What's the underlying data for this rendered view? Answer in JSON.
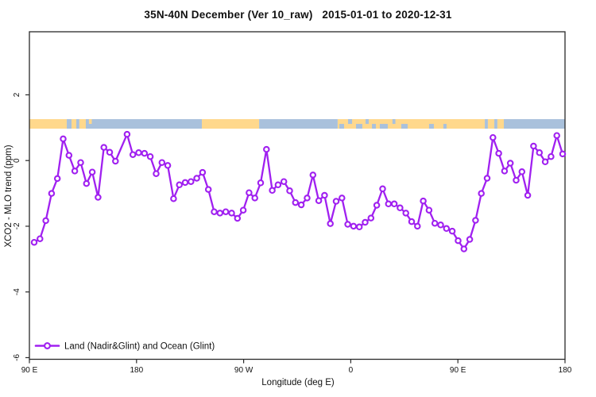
{
  "chart_data": {
    "type": "line",
    "title": "35N-40N December (Ver 10_raw)   2015-01-01 to 2020-12-31",
    "xlabel": "Longitude (deg E)",
    "ylabel": "XCO2 - MLO trend (ppm)",
    "legend_position": "bottom-left-inside",
    "grid": false,
    "xlim_deg_along_axis": [
      0,
      450
    ],
    "ylim": [
      -6.05,
      3.92
    ],
    "x_axis_note": "axis spans 450 degrees of longitude starting at 90E heading east: 90E, 180, 90W, 0, 90E, 180",
    "x_ticks": [
      {
        "label": "90 E",
        "deg": 0
      },
      {
        "label": "180",
        "deg": 90
      },
      {
        "label": "90 W",
        "deg": 180
      },
      {
        "label": "0",
        "deg": 270
      },
      {
        "label": "90 E",
        "deg": 360
      },
      {
        "label": "180",
        "deg": 450
      }
    ],
    "y_ticks": [
      {
        "label": "2",
        "value": 2
      },
      {
        "label": "0",
        "value": 0
      },
      {
        "label": "-2",
        "value": -2
      },
      {
        "label": "-4",
        "value": -4
      },
      {
        "label": "-6",
        "value": -6
      }
    ],
    "series": [
      {
        "name": "Land (Nadir&Glint) and Ocean (Glint)",
        "color": "#A020F0",
        "marker": "open-circle",
        "x_start_deg": 4,
        "x_step_deg": 4.879,
        "values": [
          -2.49,
          -2.38,
          -1.83,
          -1.0,
          -0.55,
          0.66,
          0.16,
          -0.32,
          -0.06,
          -0.7,
          -0.35,
          -1.12,
          0.4,
          0.25,
          -0.02,
          null,
          0.8,
          0.18,
          0.24,
          0.22,
          0.12,
          -0.4,
          -0.06,
          -0.15,
          -1.16,
          -0.74,
          -0.67,
          -0.64,
          -0.54,
          -0.36,
          -0.88,
          -1.56,
          -1.6,
          -1.56,
          -1.6,
          -1.76,
          -1.51,
          -0.98,
          -1.14,
          -0.68,
          0.34,
          -0.91,
          -0.74,
          -0.64,
          -0.92,
          -1.28,
          -1.35,
          -1.14,
          -0.44,
          -1.22,
          -1.06,
          -1.92,
          -1.24,
          -1.14,
          -1.94,
          -2.0,
          -2.02,
          -1.88,
          -1.75,
          -1.36,
          -0.86,
          -1.32,
          -1.32,
          -1.44,
          -1.6,
          -1.86,
          -2.0,
          -1.23,
          -1.51,
          -1.91,
          -1.96,
          -2.07,
          -2.15,
          -2.44,
          -2.69,
          -2.4,
          -1.82,
          -1.0,
          -0.54,
          0.7,
          0.22,
          -0.32,
          -0.08,
          -0.6,
          -0.34,
          -1.06,
          0.44,
          0.24,
          -0.04,
          0.12,
          0.76,
          0.2
        ]
      }
    ],
    "map_strip": {
      "description": "land/ocean map band drawn across the plot near y=1",
      "value_range": [
        0.97,
        1.26
      ],
      "colors": {
        "land": "#FFD88C",
        "ocean": "#A9C1DC"
      },
      "segments": [
        {
          "d0": 0,
          "d1": 31.4,
          "type": "land"
        },
        {
          "d0": 31.4,
          "d1": 35.4,
          "type": "ocean"
        },
        {
          "d0": 35.4,
          "d1": 39.4,
          "type": "land"
        },
        {
          "d0": 39.4,
          "d1": 42,
          "type": "ocean"
        },
        {
          "d0": 42,
          "d1": 47.4,
          "type": "land"
        },
        {
          "d0": 47.4,
          "d1": 144.9,
          "type": "ocean"
        },
        {
          "d0": 144.9,
          "d1": 193,
          "type": "land"
        },
        {
          "d0": 193,
          "d1": 259,
          "type": "ocean"
        },
        {
          "d0": 259,
          "d1": 382.6,
          "type": "land"
        },
        {
          "d0": 382.6,
          "d1": 385.2,
          "type": "ocean"
        },
        {
          "d0": 385.2,
          "d1": 390.6,
          "type": "land"
        },
        {
          "d0": 390.6,
          "d1": 393.2,
          "type": "ocean"
        },
        {
          "d0": 393.2,
          "d1": 398.6,
          "type": "land"
        },
        {
          "d0": 398.6,
          "d1": 450,
          "type": "ocean"
        }
      ],
      "patches": [
        {
          "d0": 50,
          "d1": 52.4,
          "type": "land",
          "half": "top"
        },
        {
          "d0": 260.4,
          "d1": 264.4,
          "type": "ocean",
          "half": "bottom"
        },
        {
          "d0": 267.7,
          "d1": 271.1,
          "type": "ocean",
          "half": "top"
        },
        {
          "d0": 274.4,
          "d1": 279.7,
          "type": "ocean",
          "half": "bottom"
        },
        {
          "d0": 282.4,
          "d1": 285.1,
          "type": "ocean",
          "half": "top"
        },
        {
          "d0": 287.8,
          "d1": 291.1,
          "type": "ocean",
          "half": "bottom"
        },
        {
          "d0": 294.4,
          "d1": 301.1,
          "type": "ocean",
          "half": "bottom"
        },
        {
          "d0": 305,
          "d1": 307.5,
          "type": "ocean",
          "half": "top"
        },
        {
          "d0": 312.4,
          "d1": 317.8,
          "type": "ocean",
          "half": "bottom"
        },
        {
          "d0": 335.8,
          "d1": 339.8,
          "type": "ocean",
          "half": "bottom"
        },
        {
          "d0": 347.8,
          "d1": 350.5,
          "type": "ocean",
          "half": "bottom"
        }
      ]
    },
    "axis_color": "#2a2a2a"
  }
}
